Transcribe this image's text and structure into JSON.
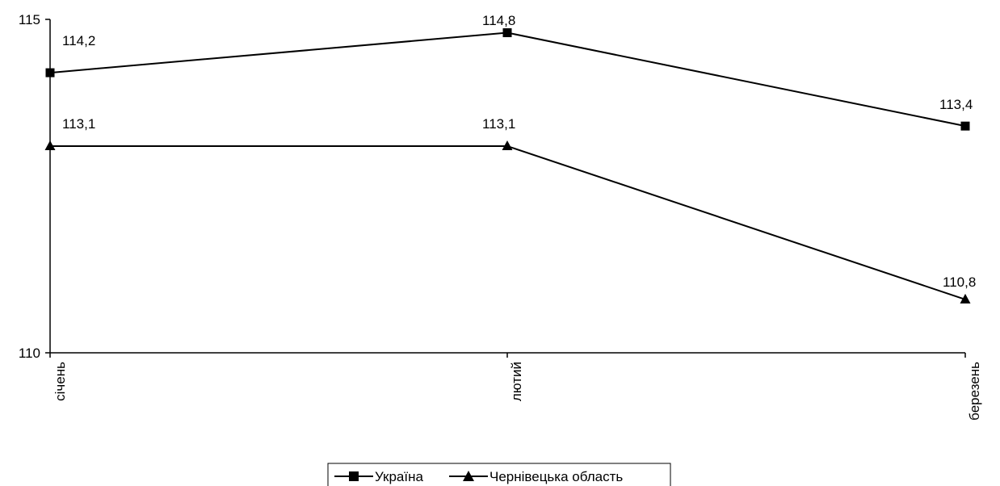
{
  "chart_data": {
    "type": "line",
    "categories": [
      "січень",
      "лютий",
      "березень"
    ],
    "series": [
      {
        "name": "Україна",
        "values": [
          114.2,
          114.8,
          113.4
        ],
        "marker": "square"
      },
      {
        "name": "Чернівецька область",
        "values": [
          113.1,
          113.1,
          110.8
        ],
        "marker": "triangle"
      }
    ],
    "data_labels": {
      "ukraine": [
        "114,2",
        "114,8",
        "113,4"
      ],
      "chernivtsi": [
        "113,1",
        "113,1",
        "110,8"
      ]
    },
    "y_tick_labels": [
      "110",
      "115"
    ],
    "ylim": [
      110,
      115
    ],
    "title": "",
    "xlabel": "",
    "ylabel": "",
    "grid": false,
    "legend_position": "bottom-center",
    "colors": {
      "line": "#000000",
      "background": "#ffffff"
    }
  }
}
